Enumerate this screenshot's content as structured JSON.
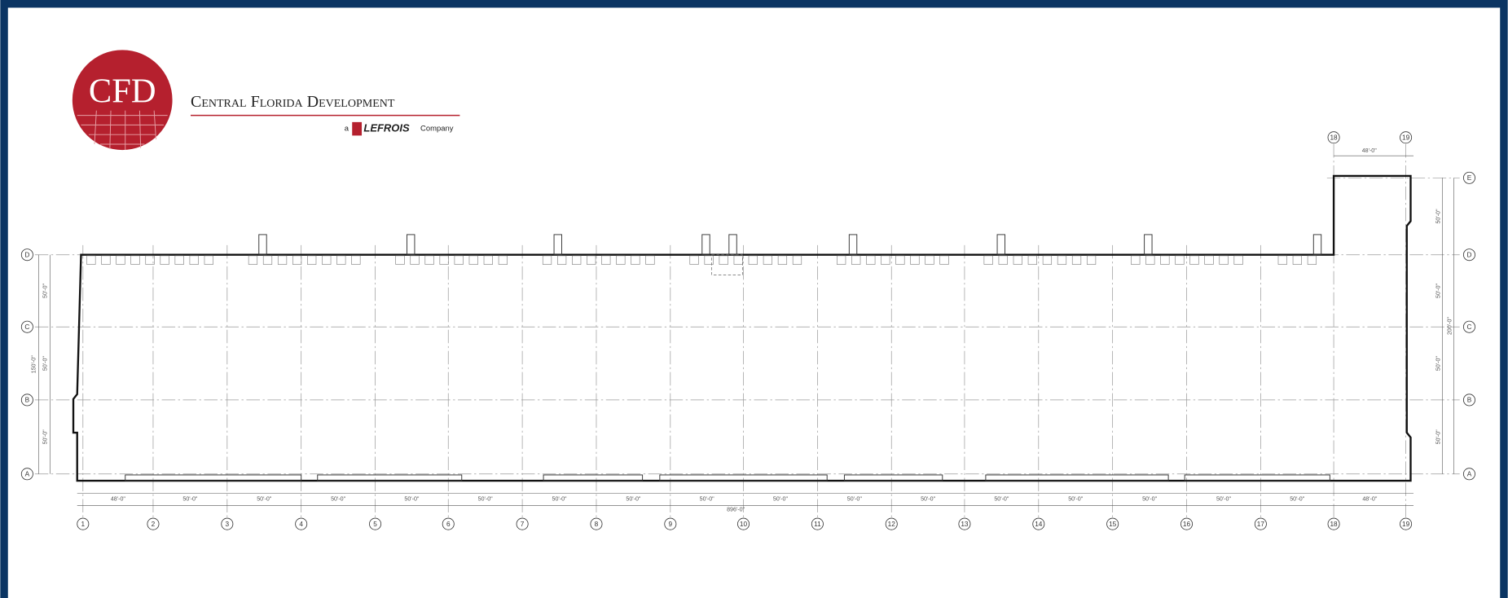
{
  "logo": {
    "mark": "CFD",
    "name": "Central Florida Development",
    "tagline_prefix": "a",
    "brand": "LeFrois",
    "tagline_suffix": "Company"
  },
  "plan": {
    "columns": [
      "1",
      "2",
      "3",
      "4",
      "5",
      "6",
      "7",
      "8",
      "9",
      "10",
      "11",
      "12",
      "13",
      "14",
      "15",
      "16",
      "17",
      "18",
      "19"
    ],
    "rows": [
      "E",
      "D",
      "C",
      "B",
      "A"
    ],
    "bay_dimensions": [
      "48'-0\"",
      "50'-0\"",
      "50'-0\"",
      "50'-0\"",
      "50'-0\"",
      "50'-0\"",
      "50'-0\"",
      "50'-0\"",
      "50'-0\"",
      "50'-0\"",
      "50'-0\"",
      "50'-0\"",
      "50'-0\"",
      "50'-0\"",
      "50'-0\"",
      "50'-0\"",
      "50'-0\"",
      "48'-0\""
    ],
    "overall_length": "896'-0\"",
    "left_dimensions": [
      "50'-0\"",
      "50'-0\"",
      "50'-0\""
    ],
    "left_overall": "150'-0\"",
    "right_dimensions": [
      "50'-0\"",
      "50'-0\"",
      "50'-0\"",
      "50'-0\""
    ],
    "right_overall": "200'-0\"",
    "annex_width": "48'-0\""
  }
}
